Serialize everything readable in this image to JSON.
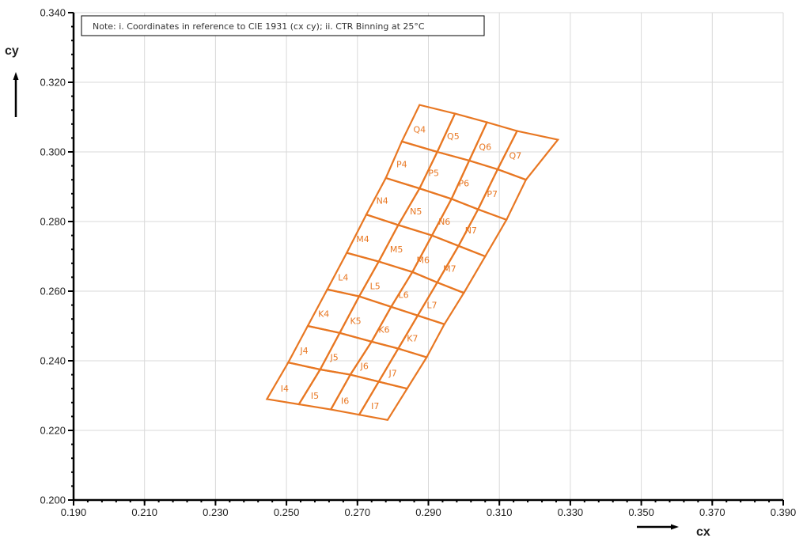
{
  "chart_data": {
    "type": "scatter",
    "subtype": "chromaticity-bin-grid",
    "title": "",
    "note": "Note: i. Coordinates in reference to CIE 1931 (cx cy); ii. CTR Binning at 25°C",
    "xlabel": "cx",
    "ylabel": "cy",
    "xlim": [
      0.19,
      0.39
    ],
    "ylim": [
      0.2,
      0.34
    ],
    "x_ticks": [
      "0.190",
      "0.210",
      "0.230",
      "0.250",
      "0.270",
      "0.290",
      "0.310",
      "0.330",
      "0.350",
      "0.370",
      "0.390"
    ],
    "y_ticks": [
      "0.200",
      "0.220",
      "0.240",
      "0.260",
      "0.280",
      "0.300",
      "0.320",
      "0.340"
    ],
    "grid": true,
    "colors": {
      "bins": "#E87722",
      "grid": "#d9d9d9",
      "axis": "#000000"
    },
    "row_names": [
      "I",
      "J",
      "K",
      "L",
      "M",
      "N",
      "P",
      "Q"
    ],
    "col_names": [
      "4",
      "5",
      "6",
      "7"
    ],
    "grid_nodes": [
      [
        [
          0.2445,
          0.229
        ],
        [
          0.2535,
          0.2275
        ],
        [
          0.2625,
          0.226
        ],
        [
          0.2705,
          0.2245
        ],
        [
          0.2785,
          0.223
        ]
      ],
      [
        [
          0.2505,
          0.2395
        ],
        [
          0.2595,
          0.2375
        ],
        [
          0.268,
          0.236
        ],
        [
          0.276,
          0.234
        ],
        [
          0.284,
          0.232
        ]
      ],
      [
        [
          0.256,
          0.25
        ],
        [
          0.265,
          0.248
        ],
        [
          0.274,
          0.2455
        ],
        [
          0.2815,
          0.2435
        ],
        [
          0.2895,
          0.241
        ]
      ],
      [
        [
          0.2615,
          0.2605
        ],
        [
          0.2705,
          0.2585
        ],
        [
          0.2795,
          0.2555
        ],
        [
          0.287,
          0.253
        ],
        [
          0.2945,
          0.2505
        ]
      ],
      [
        [
          0.267,
          0.271
        ],
        [
          0.276,
          0.2685
        ],
        [
          0.2855,
          0.2655
        ],
        [
          0.2925,
          0.2625
        ],
        [
          0.3,
          0.2595
        ]
      ],
      [
        [
          0.2725,
          0.282
        ],
        [
          0.2815,
          0.279
        ],
        [
          0.291,
          0.276
        ],
        [
          0.2985,
          0.273
        ],
        [
          0.306,
          0.27
        ]
      ],
      [
        [
          0.278,
          0.2925
        ],
        [
          0.2875,
          0.2895
        ],
        [
          0.2965,
          0.2865
        ],
        [
          0.304,
          0.2835
        ],
        [
          0.312,
          0.2805
        ]
      ],
      [
        [
          0.2825,
          0.303
        ],
        [
          0.2925,
          0.3
        ],
        [
          0.3015,
          0.2975
        ],
        [
          0.3095,
          0.295
        ],
        [
          0.3175,
          0.292
        ]
      ],
      [
        [
          0.2875,
          0.3135
        ],
        [
          0.2975,
          0.311
        ],
        [
          0.3065,
          0.3085
        ],
        [
          0.315,
          0.306
        ],
        [
          0.3265,
          0.3035
        ]
      ]
    ],
    "bins": [
      {
        "name": "I4",
        "cx": 0.2495,
        "cy": 0.232
      },
      {
        "name": "I5",
        "cx": 0.258,
        "cy": 0.23
      },
      {
        "name": "I6",
        "cx": 0.2665,
        "cy": 0.2285
      },
      {
        "name": "I7",
        "cx": 0.275,
        "cy": 0.227
      },
      {
        "name": "J4",
        "cx": 0.255,
        "cy": 0.243
      },
      {
        "name": "J5",
        "cx": 0.2635,
        "cy": 0.241
      },
      {
        "name": "J6",
        "cx": 0.272,
        "cy": 0.2385
      },
      {
        "name": "J7",
        "cx": 0.28,
        "cy": 0.2365
      },
      {
        "name": "K4",
        "cx": 0.2605,
        "cy": 0.2535
      },
      {
        "name": "K5",
        "cx": 0.2695,
        "cy": 0.2515
      },
      {
        "name": "K6",
        "cx": 0.2775,
        "cy": 0.249
      },
      {
        "name": "K7",
        "cx": 0.2855,
        "cy": 0.2465
      },
      {
        "name": "L4",
        "cx": 0.266,
        "cy": 0.264
      },
      {
        "name": "L5",
        "cx": 0.275,
        "cy": 0.2615
      },
      {
        "name": "L6",
        "cx": 0.283,
        "cy": 0.259
      },
      {
        "name": "L7",
        "cx": 0.291,
        "cy": 0.256
      },
      {
        "name": "M4",
        "cx": 0.2715,
        "cy": 0.275
      },
      {
        "name": "M5",
        "cx": 0.281,
        "cy": 0.272
      },
      {
        "name": "M6",
        "cx": 0.2885,
        "cy": 0.269
      },
      {
        "name": "M7",
        "cx": 0.296,
        "cy": 0.2665
      },
      {
        "name": "N4",
        "cx": 0.277,
        "cy": 0.286
      },
      {
        "name": "N5",
        "cx": 0.2865,
        "cy": 0.283
      },
      {
        "name": "N6",
        "cx": 0.2945,
        "cy": 0.28
      },
      {
        "name": "N7",
        "cx": 0.302,
        "cy": 0.2775
      },
      {
        "name": "P4",
        "cx": 0.2825,
        "cy": 0.2965
      },
      {
        "name": "P5",
        "cx": 0.2915,
        "cy": 0.294
      },
      {
        "name": "P6",
        "cx": 0.3,
        "cy": 0.291
      },
      {
        "name": "P7",
        "cx": 0.308,
        "cy": 0.288
      },
      {
        "name": "Q4",
        "cx": 0.2875,
        "cy": 0.3065
      },
      {
        "name": "Q5",
        "cx": 0.297,
        "cy": 0.3045
      },
      {
        "name": "Q6",
        "cx": 0.306,
        "cy": 0.3015
      },
      {
        "name": "Q7",
        "cx": 0.3145,
        "cy": 0.299
      }
    ]
  }
}
